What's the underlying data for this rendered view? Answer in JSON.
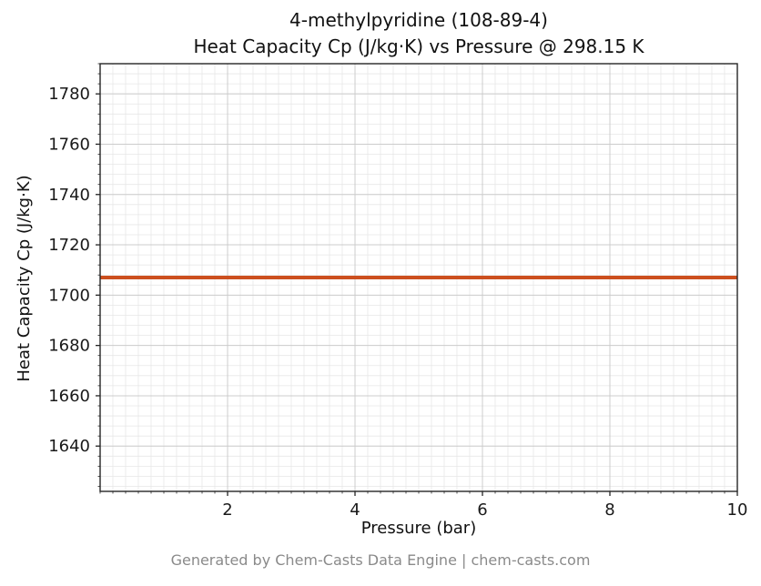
{
  "figure": {
    "title_line1": "4-methylpyridine (108-89-4)",
    "title_line2": "Heat Capacity Cp (J/kg·K) vs Pressure @ 298.15 K",
    "footer": "Generated by Chem-Casts Data Engine | chem-casts.com"
  },
  "chart_data": {
    "type": "line",
    "title": "4-methylpyridine (108-89-4) — Heat Capacity Cp (J/kg·K) vs Pressure @ 298.15 K",
    "xlabel": "Pressure (bar)",
    "ylabel": "Heat Capacity Cp (J/kg·K)",
    "xlim": [
      0,
      10
    ],
    "ylim": [
      1622,
      1792
    ],
    "xticks": [
      2,
      4,
      6,
      8,
      10
    ],
    "yticks": [
      1640,
      1660,
      1680,
      1700,
      1720,
      1740,
      1760,
      1780
    ],
    "minor_x_step": 0.2,
    "minor_y_step": 4,
    "grid": true,
    "legend": false,
    "series": [
      {
        "name": "Heat Capacity Cp",
        "x": [
          0,
          10
        ],
        "y": [
          1707,
          1707
        ],
        "color": "#cc4f1e",
        "width": 4
      }
    ],
    "colors": {
      "minor_grid": "#e7e7e7",
      "major_grid": "#cccccc",
      "spine": "#262626",
      "tick_text": "#1a1a1a",
      "footer_text": "#8a8a8a"
    }
  }
}
